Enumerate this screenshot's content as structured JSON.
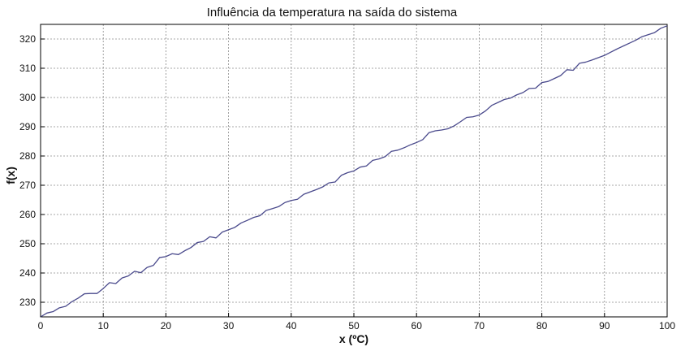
{
  "chart_data": {
    "type": "line",
    "title": "Influência da temperatura na saída do sistema",
    "xlabel": "x (ºC)",
    "ylabel": "f(x)",
    "xlim": [
      0,
      100
    ],
    "ylim": [
      225,
      325
    ],
    "x_ticks": [
      0,
      10,
      20,
      30,
      40,
      50,
      60,
      70,
      80,
      90,
      100
    ],
    "y_ticks": [
      230,
      240,
      250,
      260,
      270,
      280,
      290,
      300,
      310,
      320
    ],
    "grid": true,
    "colors": {
      "line": "#4a4a8c",
      "grid": "#8a8a8a",
      "axes": "#000000"
    },
    "series": [
      {
        "x": [
          0,
          1,
          2,
          3,
          4,
          5,
          6,
          7,
          8,
          9,
          10,
          11,
          12,
          13,
          14,
          15,
          16,
          17,
          18,
          19,
          20,
          21,
          22,
          23,
          24,
          25,
          26,
          27,
          28,
          29,
          30,
          31,
          32,
          33,
          34,
          35,
          36,
          37,
          38,
          39,
          40,
          41,
          42,
          43,
          44,
          45,
          46,
          47,
          48,
          49,
          50,
          51,
          52,
          53,
          54,
          55,
          56,
          57,
          58,
          59,
          60,
          61,
          62,
          63,
          64,
          65,
          66,
          67,
          68,
          69,
          70,
          71,
          72,
          73,
          74,
          75,
          76,
          77,
          78,
          79,
          80,
          81,
          82,
          83,
          84,
          85,
          86,
          87,
          88,
          89,
          90,
          91,
          92,
          93,
          94,
          95,
          96,
          97,
          98,
          99,
          100
        ],
        "y": [
          225.0,
          226.3,
          226.8,
          228.1,
          228.6,
          230.2,
          231.4,
          232.9,
          233.0,
          233.0,
          234.7,
          236.7,
          236.4,
          238.3,
          239.0,
          240.6,
          240.1,
          241.9,
          242.6,
          245.3,
          245.6,
          246.6,
          246.3,
          247.6,
          248.7,
          250.4,
          250.8,
          252.4,
          252.0,
          254.0,
          254.8,
          255.6,
          257.1,
          258.0,
          259.0,
          259.6,
          261.4,
          262.0,
          262.7,
          264.1,
          264.8,
          265.2,
          266.9,
          267.7,
          268.5,
          269.4,
          270.8,
          271.1,
          273.4,
          274.3,
          274.9,
          276.2,
          276.6,
          278.5,
          279.0,
          279.8,
          281.6,
          282.0,
          282.8,
          283.8,
          284.6,
          285.6,
          288.0,
          288.6,
          288.9,
          289.3,
          290.3,
          291.7,
          293.2,
          293.4,
          294.0,
          295.4,
          297.3,
          298.3,
          299.3,
          299.8,
          300.9,
          301.7,
          303.1,
          303.2,
          305.1,
          305.5,
          306.5,
          307.5,
          309.5,
          309.3,
          311.7,
          312.1,
          312.8,
          313.6,
          314.4,
          315.5,
          316.6,
          317.6,
          318.6,
          319.6,
          320.8,
          321.5,
          322.2,
          323.7,
          324.5
        ]
      }
    ]
  }
}
